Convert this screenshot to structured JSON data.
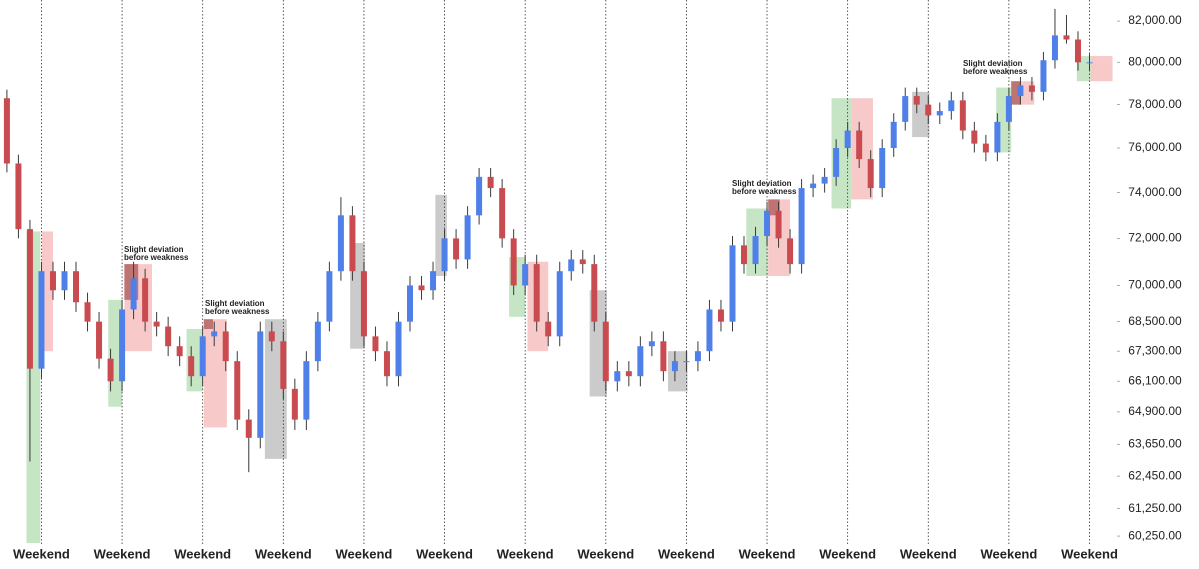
{
  "chart_data": {
    "type": "candlestick",
    "x": [
      -3,
      -2,
      -1,
      0,
      1,
      2,
      3,
      4,
      5,
      6,
      7,
      8,
      9,
      10,
      11,
      12,
      13,
      14,
      15,
      16,
      17,
      18,
      19,
      20,
      21,
      22,
      23,
      24,
      25,
      26,
      27,
      28,
      29,
      30,
      31,
      32,
      33,
      34,
      35,
      36,
      37,
      38,
      39,
      40,
      41,
      42,
      43,
      44,
      45,
      46,
      47,
      48,
      49,
      50,
      51,
      52,
      53,
      54,
      55,
      56,
      57,
      58,
      59,
      60,
      61,
      62,
      63,
      64,
      65,
      66,
      67,
      68,
      69,
      70,
      71,
      72,
      73,
      74,
      75,
      76,
      77,
      78,
      79,
      80,
      81,
      82,
      83,
      84,
      85,
      86,
      87,
      88,
      89,
      90,
      91
    ],
    "open": [
      78300,
      75300,
      72400,
      66600,
      70600,
      69800,
      70600,
      69300,
      68500,
      67000,
      66100,
      69000,
      70300,
      68500,
      68300,
      67500,
      67100,
      66300,
      67900,
      68100,
      66900,
      64600,
      63900,
      68100,
      67700,
      65800,
      64600,
      66900,
      68500,
      70600,
      73000,
      70600,
      67900,
      67300,
      66300,
      68500,
      70000,
      69800,
      70600,
      72000,
      71100,
      73000,
      74700,
      74200,
      72000,
      70000,
      70900,
      68500,
      67900,
      70600,
      71100,
      70900,
      68500,
      66100,
      66500,
      66300,
      67500,
      67700,
      66500,
      66900,
      66900,
      67300,
      69000,
      68500,
      71700,
      70900,
      72100,
      73200,
      72000,
      70900,
      74200,
      74400,
      74700,
      76000,
      76800,
      75500,
      74200,
      76000,
      77200,
      78400,
      78000,
      77500,
      77700,
      78200,
      76800,
      76200,
      75800,
      77200,
      78400,
      78900,
      78600,
      80100,
      81300,
      81100,
      80000
    ],
    "high": [
      78700,
      75700,
      72800,
      71000,
      71000,
      71000,
      71000,
      69700,
      68900,
      67400,
      69400,
      71000,
      70700,
      68900,
      68700,
      67900,
      67500,
      68300,
      68500,
      68500,
      67300,
      65000,
      68500,
      68500,
      68100,
      66200,
      67300,
      68900,
      71000,
      73800,
      73400,
      71000,
      68300,
      67700,
      68900,
      70400,
      70400,
      71000,
      72400,
      72400,
      73400,
      75100,
      75100,
      74600,
      72400,
      71300,
      71300,
      68900,
      71000,
      71500,
      71500,
      71300,
      68900,
      66900,
      66900,
      67900,
      68100,
      68100,
      67300,
      67300,
      67700,
      69400,
      69400,
      72100,
      72100,
      72500,
      73600,
      73600,
      72400,
      74600,
      74800,
      75100,
      76400,
      77200,
      77200,
      75900,
      76400,
      77600,
      78800,
      78800,
      78400,
      78100,
      78600,
      78600,
      77200,
      76600,
      77600,
      78800,
      79300,
      79300,
      80500,
      82600,
      82300,
      81500,
      80400
    ],
    "low": [
      74900,
      72000,
      63000,
      66200,
      69400,
      69400,
      68900,
      68100,
      66600,
      65700,
      65700,
      68600,
      68100,
      67900,
      67100,
      66700,
      65900,
      65900,
      67500,
      66500,
      64200,
      62600,
      63500,
      67300,
      65400,
      64200,
      64200,
      66500,
      68100,
      70200,
      70200,
      67500,
      66900,
      65900,
      65900,
      68100,
      69400,
      69400,
      70200,
      70700,
      70700,
      72600,
      73800,
      71600,
      69600,
      69600,
      68100,
      67500,
      67500,
      70200,
      70500,
      68100,
      65700,
      65700,
      65900,
      65900,
      67100,
      66100,
      66100,
      66500,
      66500,
      66900,
      68100,
      68100,
      70500,
      70500,
      71700,
      71600,
      70500,
      70500,
      73800,
      74000,
      74300,
      75600,
      75100,
      73800,
      73800,
      75600,
      76800,
      77600,
      77100,
      77100,
      77300,
      76400,
      75800,
      75400,
      75400,
      76800,
      78000,
      78200,
      78200,
      79700,
      80900,
      79600,
      79600
    ],
    "close": [
      75300,
      72400,
      66600,
      70600,
      69800,
      70600,
      69300,
      68500,
      67000,
      66100,
      69000,
      70300,
      68500,
      68300,
      67500,
      67100,
      66300,
      67900,
      68100,
      66900,
      64600,
      63900,
      68100,
      67700,
      65800,
      64600,
      66900,
      68500,
      70600,
      73000,
      70600,
      67900,
      67300,
      66300,
      68500,
      70000,
      69800,
      70600,
      72000,
      71100,
      73000,
      74700,
      74200,
      72000,
      70000,
      70900,
      68500,
      67900,
      70600,
      71100,
      70900,
      68500,
      66100,
      66500,
      66300,
      67500,
      67700,
      66500,
      66900,
      66900,
      67300,
      69000,
      68500,
      71700,
      70900,
      72100,
      73200,
      72000,
      70900,
      74200,
      74400,
      74700,
      76000,
      76800,
      75500,
      74200,
      76000,
      77200,
      78400,
      78000,
      77500,
      77700,
      78200,
      76800,
      76200,
      75800,
      77200,
      78400,
      78900,
      78600,
      80100,
      81300,
      81100,
      80000,
      80000
    ],
    "up_color": "#4f7fe8",
    "down_color": "#c94b50",
    "wick_color": "#3a3a3a",
    "xlim": [
      -3.6,
      93.3
    ],
    "xticks": [
      {
        "value": 0,
        "label": "Weekend"
      },
      {
        "value": 7,
        "label": "Weekend"
      },
      {
        "value": 14,
        "label": "Weekend"
      },
      {
        "value": 21,
        "label": "Weekend"
      },
      {
        "value": 28,
        "label": "Weekend"
      },
      {
        "value": 35,
        "label": "Weekend"
      },
      {
        "value": 42,
        "label": "Weekend"
      },
      {
        "value": 49,
        "label": "Weekend"
      },
      {
        "value": 56,
        "label": "Weekend"
      },
      {
        "value": 63,
        "label": "Weekend"
      },
      {
        "value": 70,
        "label": "Weekend"
      },
      {
        "value": 77,
        "label": "Weekend"
      },
      {
        "value": 84,
        "label": "Weekend"
      },
      {
        "value": 91,
        "label": "Weekend"
      }
    ],
    "log_y": true,
    "ylim": [
      59930,
      83040
    ],
    "yticks": [
      {
        "value": 82000,
        "label": "82,000.00"
      },
      {
        "value": 80000,
        "label": "80,000.00"
      },
      {
        "value": 78000,
        "label": "78,000.00"
      },
      {
        "value": 76000,
        "label": "76,000.00"
      },
      {
        "value": 74000,
        "label": "74,000.00"
      },
      {
        "value": 72000,
        "label": "72,000.00"
      },
      {
        "value": 70000,
        "label": "70,000.00"
      },
      {
        "value": 68500,
        "label": "68,500.00"
      },
      {
        "value": 67300,
        "label": "67,300.00"
      },
      {
        "value": 66100,
        "label": "66,100.00"
      },
      {
        "value": 64900,
        "label": "64,900.00"
      },
      {
        "value": 63650,
        "label": "63,650.00"
      },
      {
        "value": 62450,
        "label": "62,450.00"
      },
      {
        "value": 61250,
        "label": "61,250.00"
      },
      {
        "value": 60250,
        "label": "60,250.00"
      }
    ],
    "zones": [
      {
        "x": [
          -1.3,
          -0.1
        ],
        "y": [
          72300,
          60000
        ],
        "color": "#9fd49f"
      },
      {
        "x": [
          0.05,
          1.0
        ],
        "y": [
          72300,
          67300
        ],
        "color": "#f4a5a5"
      },
      {
        "x": [
          5.8,
          7.0
        ],
        "y": [
          69400,
          65100
        ],
        "color": "#9fd49f"
      },
      {
        "x": [
          7.2,
          9.6
        ],
        "y": [
          70900,
          67300
        ],
        "color": "#f4a5a5"
      },
      {
        "x": [
          7.2,
          8.4
        ],
        "y": [
          70900,
          69400
        ],
        "color": "#9a3c3c"
      },
      {
        "x": [
          12.6,
          14.0
        ],
        "y": [
          68200,
          65700
        ],
        "color": "#9fd49f"
      },
      {
        "x": [
          14.1,
          16.1
        ],
        "y": [
          68600,
          64300
        ],
        "color": "#f4a5a5"
      },
      {
        "x": [
          14.1,
          14.9
        ],
        "y": [
          68600,
          68200
        ],
        "color": "#9a3c3c"
      },
      {
        "x": [
          19.4,
          21.3
        ],
        "y": [
          68600,
          63100
        ],
        "color": "#a8a8a8"
      },
      {
        "x": [
          26.8,
          28.1
        ],
        "y": [
          71800,
          67400
        ],
        "color": "#a8a8a8"
      },
      {
        "x": [
          34.2,
          35.2
        ],
        "y": [
          73900,
          70400
        ],
        "color": "#a8a8a8"
      },
      {
        "x": [
          40.6,
          42.0
        ],
        "y": [
          71200,
          68700
        ],
        "color": "#9fd49f"
      },
      {
        "x": [
          42.2,
          44.0
        ],
        "y": [
          71000,
          67300
        ],
        "color": "#f4a5a5"
      },
      {
        "x": [
          47.6,
          49.1
        ],
        "y": [
          69800,
          65500
        ],
        "color": "#a8a8a8"
      },
      {
        "x": [
          54.4,
          56.1
        ],
        "y": [
          67300,
          65700
        ],
        "color": "#a8a8a8"
      },
      {
        "x": [
          61.2,
          63.1
        ],
        "y": [
          73300,
          70400
        ],
        "color": "#9fd49f"
      },
      {
        "x": [
          63.1,
          65.0
        ],
        "y": [
          73700,
          70400
        ],
        "color": "#f4a5a5"
      },
      {
        "x": [
          63.1,
          64.1
        ],
        "y": [
          73700,
          73000
        ],
        "color": "#9a3c3c"
      },
      {
        "x": [
          68.6,
          70.3
        ],
        "y": [
          78300,
          73300
        ],
        "color": "#9fd49f"
      },
      {
        "x": [
          70.3,
          72.2
        ],
        "y": [
          78300,
          73700
        ],
        "color": "#f4a5a5"
      },
      {
        "x": [
          75.6,
          77.1
        ],
        "y": [
          78600,
          76500
        ],
        "color": "#a8a8a8"
      },
      {
        "x": [
          82.9,
          84.2
        ],
        "y": [
          78800,
          75800
        ],
        "color": "#9fd49f"
      },
      {
        "x": [
          84.2,
          86.2
        ],
        "y": [
          79100,
          78000
        ],
        "color": "#f4a5a5"
      },
      {
        "x": [
          84.2,
          85.0
        ],
        "y": [
          79100,
          78000
        ],
        "color": "#9a3c3c"
      },
      {
        "x": [
          89.9,
          91.1
        ],
        "y": [
          80300,
          79100
        ],
        "color": "#9fd49f"
      },
      {
        "x": [
          91.1,
          93.0
        ],
        "y": [
          80300,
          79100
        ],
        "color": "#f4a5a5"
      }
    ],
    "annotations": [
      {
        "lines": [
          "Slight deviation",
          "before weakness"
        ]
      },
      {
        "lines": [
          "Slight deviation",
          "before weakness"
        ]
      },
      {
        "lines": [
          "Slight deviation",
          "before weakness"
        ]
      },
      {
        "lines": [
          "Slight deviation",
          "before weakness"
        ]
      }
    ]
  }
}
